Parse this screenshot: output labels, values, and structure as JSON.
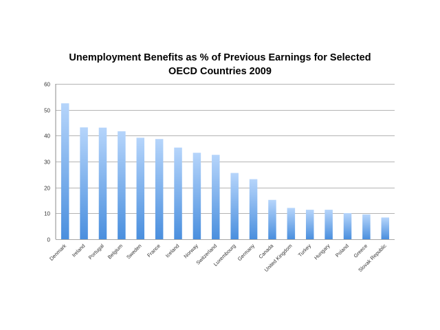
{
  "chart_data": {
    "type": "bar",
    "title_line1": "Unemployment Benefits as % of Previous Earnings for Selected",
    "title_line2": "OECD Countries 2009",
    "xlabel": "",
    "ylabel": "",
    "ylim": [
      0,
      60
    ],
    "yticks": [
      0,
      10,
      20,
      30,
      40,
      50,
      60
    ],
    "grid": true,
    "legend": "none",
    "bar_color_top": "#b6d5fb",
    "bar_color_bottom": "#4a8fde",
    "categories": [
      "Denmark",
      "Ireland",
      "Portugal",
      "Belgium",
      "Sweden",
      "France",
      "Iceland",
      "Norway",
      "Switzerland",
      "Luxembourg",
      "Germany",
      "Canada",
      "United Kingdom",
      "Turkey",
      "Hungary",
      "Poland",
      "Greece",
      "Slovak Republic"
    ],
    "values": [
      52.5,
      43.2,
      43.1,
      41.7,
      39.2,
      38.7,
      35.4,
      33.4,
      32.6,
      25.6,
      23.2,
      15.2,
      12.1,
      11.4,
      11.4,
      10.1,
      9.6,
      8.4
    ]
  }
}
